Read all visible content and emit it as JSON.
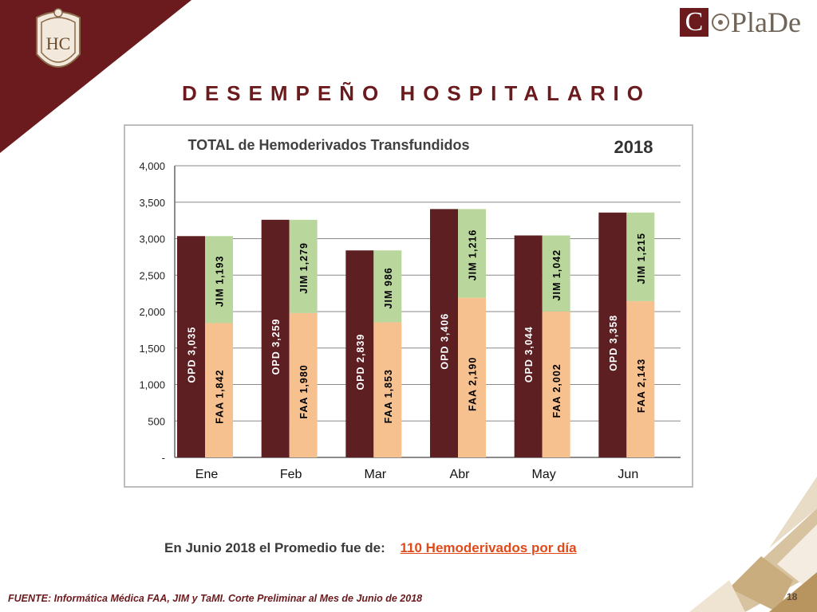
{
  "header": {
    "title": "DESEMPEÑO HOSPITALARIO",
    "logo_text": "PlaDe",
    "logo_initial": "C"
  },
  "chart_data": {
    "type": "bar",
    "title": "TOTAL de Hemoderivados Transfundidos",
    "year_label": "2018",
    "categories": [
      "Ene",
      "Feb",
      "Mar",
      "Abr",
      "May",
      "Jun"
    ],
    "ylim": [
      0,
      4000
    ],
    "yticks": [
      0,
      500,
      1000,
      1500,
      2000,
      2500,
      3000,
      3500,
      4000
    ],
    "ytick_labels": [
      "-",
      "500",
      "1,000",
      "1,500",
      "2,000",
      "2,500",
      "3,000",
      "3,500",
      "4,000"
    ],
    "grid": true,
    "series": [
      {
        "name": "OPD",
        "values": [
          3035,
          3259,
          2839,
          3406,
          3044,
          3358
        ],
        "labels": [
          "3,035",
          "3,259",
          "2,839",
          "3,406",
          "3,044",
          "3,358"
        ]
      },
      {
        "name": "FAA",
        "values": [
          1842,
          1980,
          1853,
          2190,
          2002,
          2143
        ],
        "labels": [
          "1,842",
          "1,980",
          "1,853",
          "2,190",
          "2,002",
          "2,143"
        ]
      },
      {
        "name": "JIM",
        "values": [
          1193,
          1279,
          986,
          1216,
          1042,
          1215
        ],
        "labels": [
          "1,193",
          "1,279",
          "986",
          "1,216",
          "1,042",
          "1,215"
        ]
      }
    ],
    "colors": {
      "OPD": "#5e1f22",
      "FAA": "#f7c08f",
      "JIM": "#b9d79c",
      "grid": "#8a8a8a"
    }
  },
  "summary": {
    "text": "En Junio 2018 el Promedio  fue de:",
    "highlight": "110 Hemoderivados  por día"
  },
  "footer": {
    "source": "FUENTE: Informática Médica  FAA, JIM y TaMI. Corte Preliminar al Mes de Junio de 2018",
    "page_number": "18"
  }
}
